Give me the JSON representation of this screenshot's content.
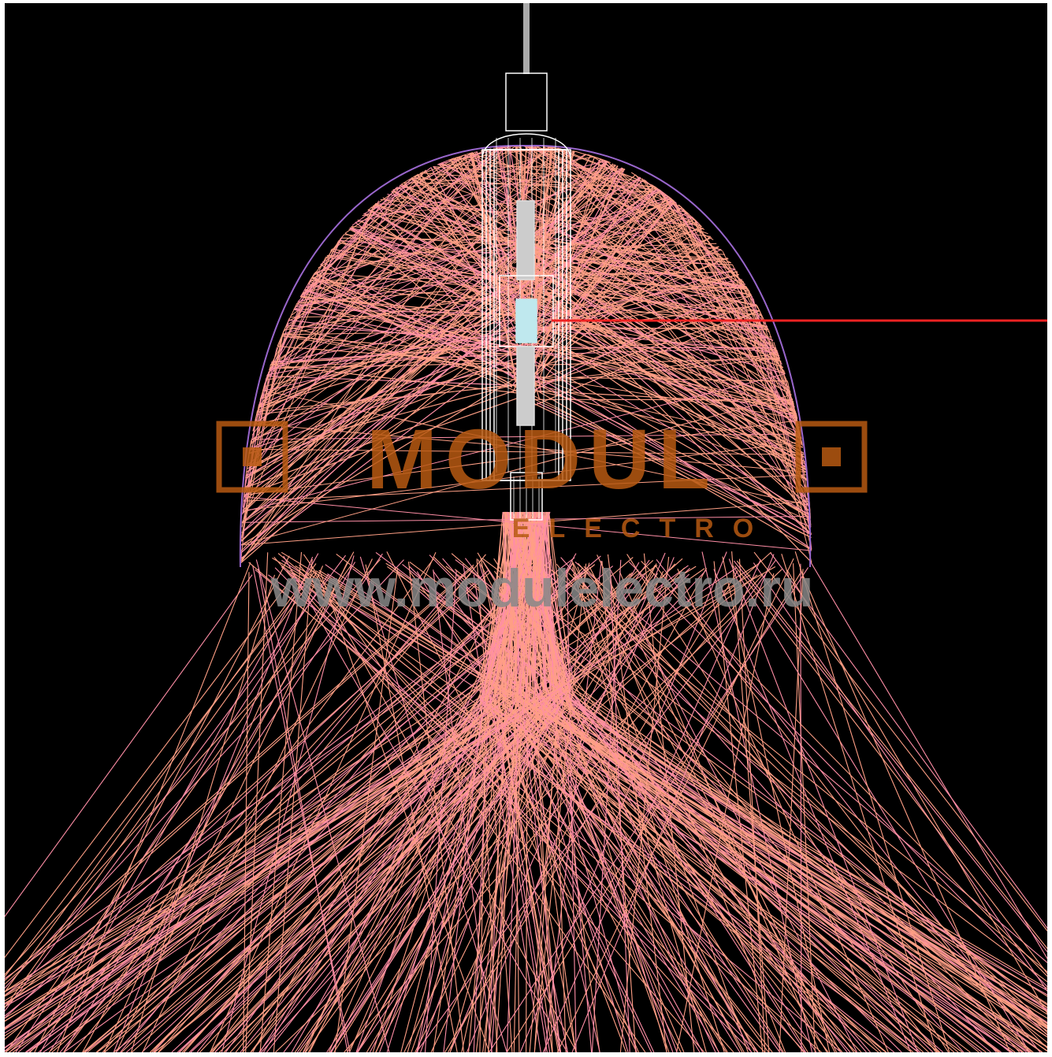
{
  "diagram": {
    "kind": "luminaire ray-trace wireframe",
    "background_color": "#000000",
    "frame_color": "#ffffff",
    "ray_color": "#ff9f85",
    "ray_color_alt": "#ff8ea6",
    "reflector_outline_color": "#9966cc",
    "lamp_wireframe_color": "#ffffff",
    "lamp_core_color": "#bfe8ee",
    "suspension_rod_color": "#aaaaaa",
    "reference_line_color": "#ee2222"
  },
  "watermark": {
    "brand": "MODUL",
    "subtitle": "ELECTRO",
    "url": "www.modulelectro.ru",
    "brand_color": "#b85a12",
    "url_color": "#888888"
  }
}
